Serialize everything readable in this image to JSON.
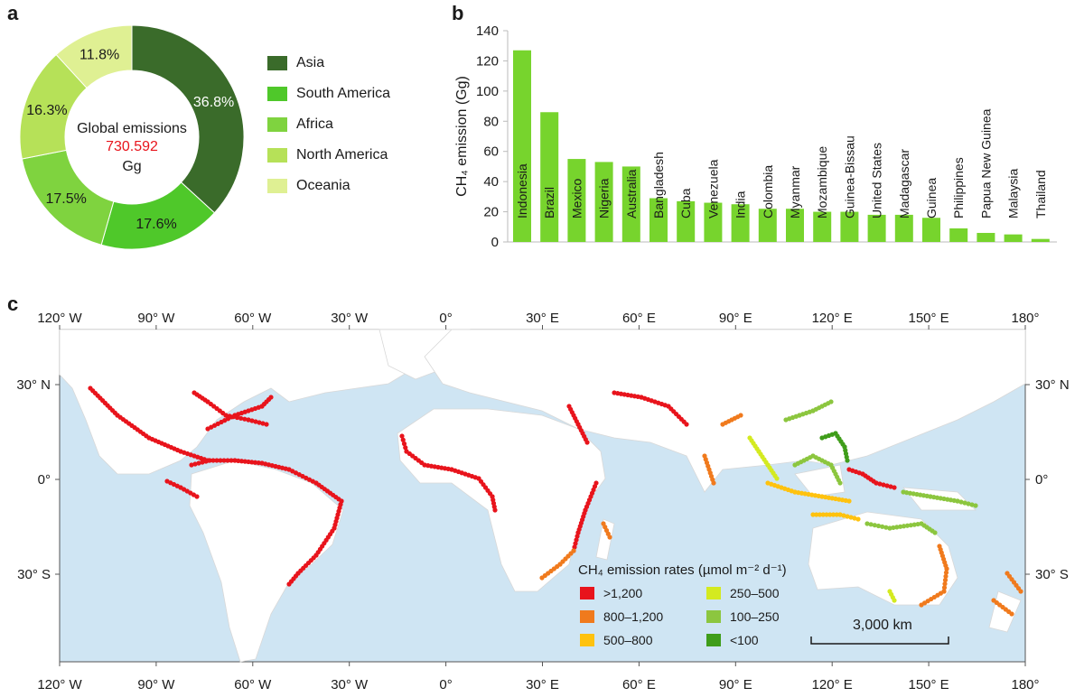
{
  "panels": {
    "a": "a",
    "b": "b",
    "c": "c"
  },
  "donut": {
    "center_line1": "Global emissions",
    "center_value": "730.592",
    "center_unit": "Gg"
  },
  "map": {
    "legend_title": "CH₄ emission rates (µmol m⁻² d⁻¹)",
    "legend": [
      {
        "label": ">1,200",
        "color": "#e8141c"
      },
      {
        "label": "800–1,200",
        "color": "#f07a1d"
      },
      {
        "label": "500–800",
        "color": "#ffc20e"
      },
      {
        "label": "250–500",
        "color": "#d4ea20"
      },
      {
        "label": "100–250",
        "color": "#8cc63f"
      },
      {
        "label": "<100",
        "color": "#3f9d1a"
      }
    ],
    "scale_bar": "3,000 km",
    "top_ticks": [
      "120° W",
      "90° W",
      "60° W",
      "30° W",
      "0°",
      "30° E",
      "60° E",
      "90° E",
      "120° E",
      "150° E",
      "180°"
    ],
    "bottom_ticks": [
      "120° W",
      "90° W",
      "60° W",
      "30° W",
      "0°",
      "30° E",
      "60° E",
      "90° E",
      "120° E",
      "150° E",
      "180°"
    ],
    "lat_ticks": [
      "30° N",
      "0°",
      "30° S"
    ]
  },
  "chart_data": [
    {
      "type": "pie",
      "categories": [
        "Asia",
        "South America",
        "Africa",
        "North America",
        "Oceania"
      ],
      "values": [
        36.8,
        17.6,
        17.5,
        16.3,
        11.8
      ],
      "labels": [
        "36.8%",
        "17.6%",
        "17.5%",
        "16.3%",
        "11.8%"
      ],
      "colors": [
        "#3a6b2a",
        "#4fc82a",
        "#7fd33f",
        "#b6e158",
        "#dff093"
      ],
      "legend": "right"
    },
    {
      "type": "bar",
      "categories": [
        "Indonesia",
        "Brazil",
        "Mexico",
        "Nigeria",
        "Australia",
        "Bangladesh",
        "Cuba",
        "Venezuela",
        "India",
        "Colombia",
        "Myanmar",
        "Mozambique",
        "Guinea-Bissau",
        "United States",
        "Madagascar",
        "Guinea",
        "Philippines",
        "Papua New Guinea",
        "Malaysia",
        "Thailand"
      ],
      "values": [
        127,
        86,
        55,
        53,
        50,
        29,
        27,
        26,
        25,
        22,
        22,
        20,
        20,
        18,
        18,
        16,
        9,
        6,
        5,
        2
      ],
      "ylabel": "CH₄ emission (Gg)",
      "ylim": [
        0,
        140
      ],
      "yticks": [
        "0",
        "20",
        "40",
        "60",
        "80",
        "100",
        "120",
        "140"
      ],
      "color": "#77d42d"
    }
  ]
}
